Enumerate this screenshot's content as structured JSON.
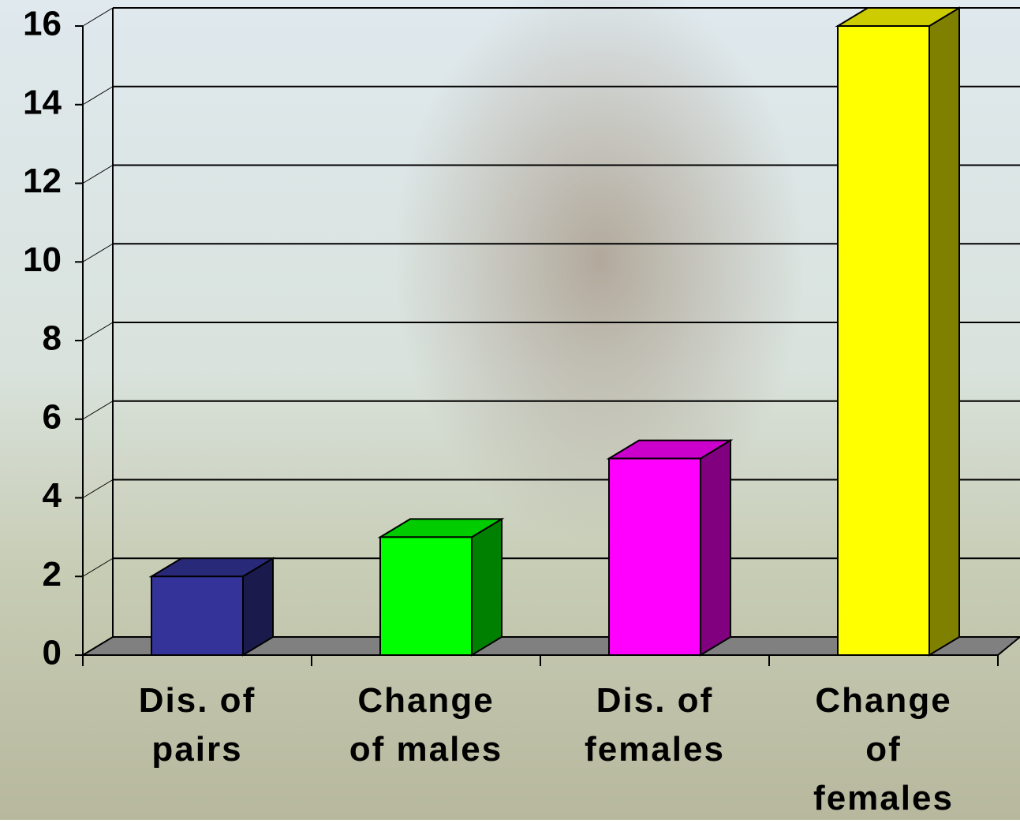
{
  "chart_data": {
    "type": "bar3d",
    "categories": [
      "Dis. of\npairs",
      "Change\nof males",
      "Dis. of\nfemales",
      "Change\nof\nfemales"
    ],
    "values": [
      2,
      3,
      5,
      16
    ],
    "colors": [
      "#333399",
      "#00ff00",
      "#ff00ff",
      "#ffff00"
    ],
    "ylim": [
      0,
      16
    ],
    "yticks": [
      0,
      2,
      4,
      6,
      8,
      10,
      12,
      14,
      16
    ],
    "grid": true
  }
}
